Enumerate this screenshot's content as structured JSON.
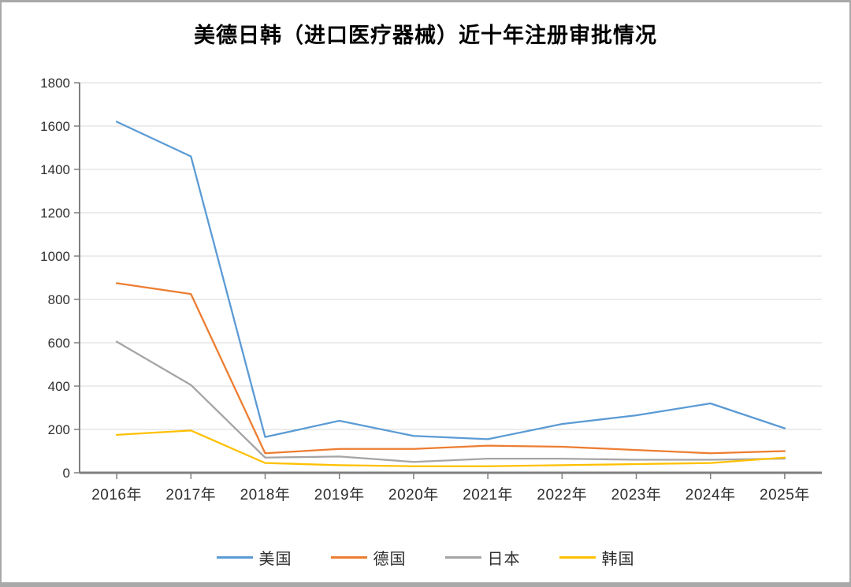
{
  "window": {
    "background": "#ffffff",
    "frame_color": "#a9a9a9"
  },
  "chart_data": {
    "type": "line",
    "title": "美德日韩（进口医疗器械）近十年注册审批情况",
    "categories": [
      "2016年",
      "2017年",
      "2018年",
      "2019年",
      "2020年",
      "2021年",
      "2022年",
      "2023年",
      "2024年",
      "2025年"
    ],
    "series": [
      {
        "key": "usa",
        "name": "美国",
        "color": "#5B9BD5",
        "values": [
          1620,
          1460,
          165,
          240,
          170,
          155,
          225,
          265,
          320,
          205
        ]
      },
      {
        "key": "germany",
        "name": "德国",
        "color": "#ED7D31",
        "values": [
          875,
          825,
          90,
          110,
          110,
          125,
          120,
          105,
          90,
          100
        ]
      },
      {
        "key": "japan",
        "name": "日本",
        "color": "#A5A5A5",
        "values": [
          605,
          405,
          70,
          75,
          50,
          65,
          65,
          60,
          60,
          65
        ]
      },
      {
        "key": "korea",
        "name": "韩国",
        "color": "#FFC000",
        "values": [
          175,
          195,
          45,
          35,
          30,
          30,
          35,
          40,
          45,
          70
        ]
      }
    ],
    "y_axis": {
      "min": 0,
      "max": 1800,
      "step": 200,
      "tick_labels": [
        "0",
        "200",
        "400",
        "600",
        "800",
        "1000",
        "1200",
        "1400",
        "1600",
        "1800"
      ]
    },
    "grid": true,
    "legend_position": "bottom",
    "axis_color": "#7f7f7f",
    "gridline_color": "#d9d9d9"
  }
}
